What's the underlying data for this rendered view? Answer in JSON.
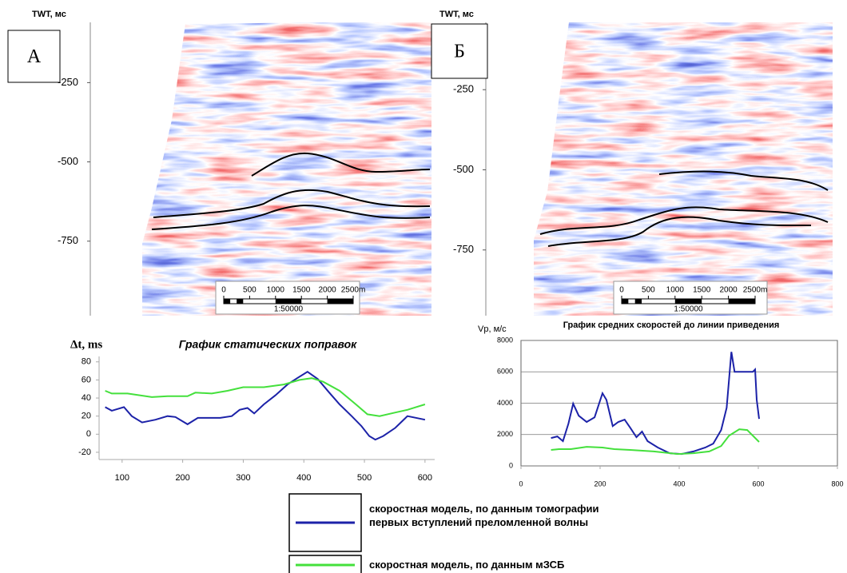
{
  "panels": [
    {
      "label": "А",
      "axis_title": "TWT, мс",
      "ylim": [
        -60,
        -985
      ],
      "yticks": [
        -250,
        -500,
        -750
      ],
      "scale_bar": {
        "xlim": [
          0,
          2500
        ],
        "ticks": [
          0,
          500,
          1000,
          1500,
          2000,
          {
            "value": 2500,
            "label": "2500m"
          }
        ],
        "label": "1:50000"
      }
    },
    {
      "label": "Б",
      "axis_title": "TWT, мс",
      "ylim": [
        -40,
        -955
      ],
      "yticks": [
        -250,
        -500,
        -750
      ],
      "scale_bar": {
        "xlim": [
          0,
          2500
        ],
        "ticks": [
          0,
          500,
          1000,
          1500,
          2000,
          {
            "value": 2500,
            "label": "2500m"
          }
        ],
        "label": "1:50000"
      }
    }
  ],
  "chart_data": [
    {
      "type": "line",
      "title": "График статических поправок",
      "y_label": "Δt, ms",
      "xlim": [
        62,
        616
      ],
      "xticks": [
        100,
        200,
        300,
        400,
        500,
        600
      ],
      "ylim": [
        -28,
        86
      ],
      "yticks": [
        -20,
        0,
        20,
        40,
        60,
        80
      ],
      "grid": false,
      "frame": false,
      "series": [
        {
          "name": "скоростная модель, по данным томографии\nпервых вступлений преломленной волны",
          "color": "#1c22a8",
          "x": [
            72,
            83,
            103,
            116,
            133,
            155,
            175,
            188,
            208,
            225,
            244,
            262,
            281,
            294,
            307,
            318,
            334,
            353,
            373,
            389,
            406,
            423,
            442,
            459,
            479,
            495,
            508,
            518,
            531,
            551,
            571,
            600
          ],
          "values": [
            30,
            26,
            30,
            20,
            13,
            16,
            20,
            19,
            11,
            18,
            18,
            18,
            20,
            27,
            29,
            23,
            33,
            43,
            55,
            62,
            69,
            61,
            46,
            33,
            20,
            9,
            -2,
            -6,
            -2,
            7,
            20,
            16
          ]
        },
        {
          "name": "скоростная модель, по данным мЗСБ",
          "color": "#44e03c",
          "x": [
            72,
            83,
            109,
            149,
            175,
            208,
            221,
            248,
            274,
            300,
            334,
            367,
            393,
            413,
            432,
            459,
            486,
            505,
            525,
            551,
            571,
            600
          ],
          "values": [
            48,
            45,
            45,
            41,
            42,
            42,
            46,
            45,
            48,
            52,
            52,
            55,
            60,
            62,
            58,
            48,
            33,
            22,
            20,
            24,
            27,
            33
          ]
        }
      ]
    },
    {
      "type": "line",
      "title": "График средних скоростей до линии приведения",
      "y_label": "Vp, м/с",
      "xlim": [
        0,
        800
      ],
      "xticks": [
        0,
        200,
        400,
        600,
        800
      ],
      "ylim": [
        0,
        8000
      ],
      "yticks": [
        0,
        2000,
        4000,
        6000,
        8000
      ],
      "grid": true,
      "frame": true,
      "series": [
        {
          "color": "#1c22a8",
          "x": [
            76,
            92,
            106,
            120,
            132,
            146,
            166,
            186,
            206,
            216,
            232,
            246,
            262,
            276,
            292,
            306,
            320,
            346,
            376,
            406,
            436,
            466,
            486,
            506,
            520,
            532,
            540,
            586,
            592,
            596,
            602
          ],
          "values": [
            1780,
            1880,
            1580,
            2700,
            3970,
            3200,
            2800,
            3100,
            4630,
            4220,
            2540,
            2800,
            2950,
            2440,
            1830,
            2190,
            1580,
            1170,
            810,
            760,
            920,
            1170,
            1420,
            2290,
            3710,
            7270,
            6000,
            6000,
            6150,
            4220,
            3000
          ]
        },
        {
          "color": "#44e03c",
          "x": [
            76,
            96,
            126,
            166,
            206,
            236,
            276,
            336,
            396,
            436,
            476,
            506,
            526,
            552,
            572,
            602
          ],
          "values": [
            1020,
            1070,
            1070,
            1220,
            1170,
            1070,
            1020,
            920,
            760,
            810,
            920,
            1270,
            1930,
            2340,
            2290,
            1530
          ]
        }
      ]
    }
  ]
}
